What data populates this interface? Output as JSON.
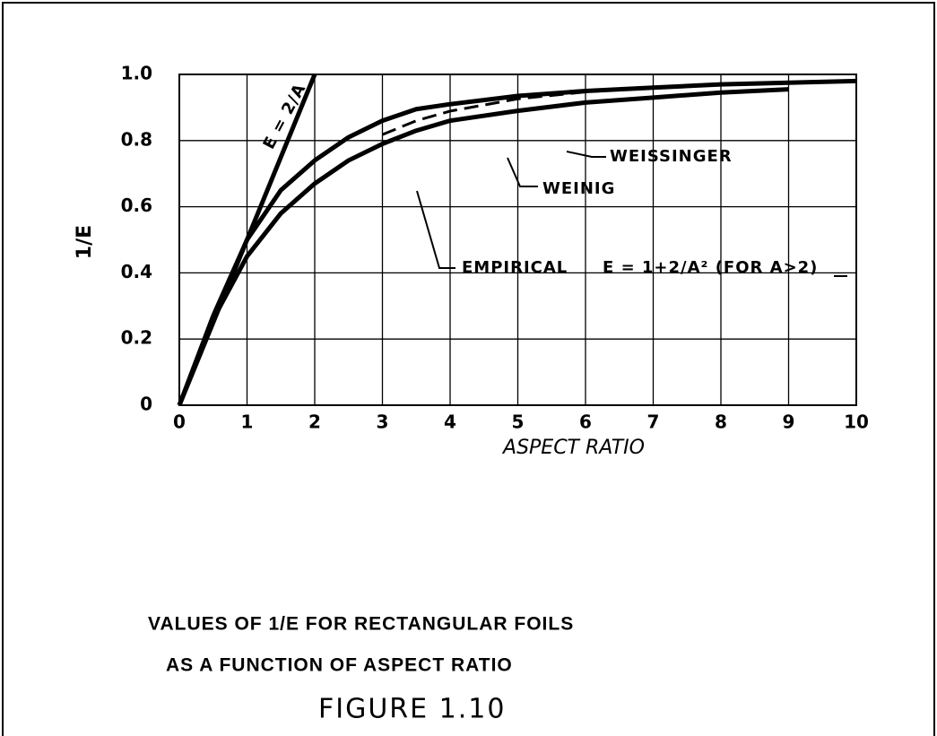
{
  "chart_data": {
    "type": "line",
    "title": "VALUES OF 1/E FOR RECTANGULAR FOILS",
    "subtitle": "AS A FUNCTION OF ASPECT RATIO",
    "caption": "FIGURE 1.10",
    "xlabel": "ASPECT RATIO",
    "ylabel": "1/E",
    "xlim": [
      0,
      10
    ],
    "ylim": [
      0,
      1
    ],
    "xticks": [
      0,
      1,
      2,
      3,
      4,
      5,
      6,
      7,
      8,
      9,
      10
    ],
    "yticks": [
      0,
      0.2,
      0.4,
      0.6,
      0.8,
      {
        "value": 1,
        "label": "1.0"
      }
    ],
    "grid": true,
    "series": [
      {
        "name": "E = 2/A",
        "color": "#000000",
        "x": [
          0,
          2
        ],
        "values": [
          0,
          1
        ]
      },
      {
        "name": "WEINIG",
        "color": "#000000",
        "x": [
          0,
          0.5,
          1,
          1.5,
          2,
          2.5,
          3,
          3.5,
          4,
          5,
          6,
          7,
          8,
          9,
          10
        ],
        "values": [
          0,
          0.27,
          0.5,
          0.65,
          0.74,
          0.81,
          0.86,
          0.895,
          0.91,
          0.935,
          0.95,
          0.96,
          0.97,
          0.975,
          0.98
        ]
      },
      {
        "name": "WEISSINGER",
        "color": "#000000",
        "x": [
          0,
          0.5,
          1,
          1.5,
          2,
          2.5,
          3,
          3.5,
          4,
          5,
          6,
          7,
          8,
          9
        ],
        "values": [
          0,
          0.26,
          0.45,
          0.58,
          0.67,
          0.74,
          0.79,
          0.83,
          0.86,
          0.89,
          0.915,
          0.93,
          0.945,
          0.955
        ]
      },
      {
        "name": "EMPIRICAL",
        "color": "#000000",
        "dashed": true,
        "x": [
          3,
          3.5,
          4,
          5,
          6,
          7,
          8,
          9,
          10
        ],
        "values": [
          0.818,
          0.86,
          0.889,
          0.926,
          0.947,
          0.961,
          0.97,
          0.976,
          0.98
        ]
      }
    ],
    "annotations": [
      "E = 1+2/A² (FOR A>2)"
    ]
  }
}
